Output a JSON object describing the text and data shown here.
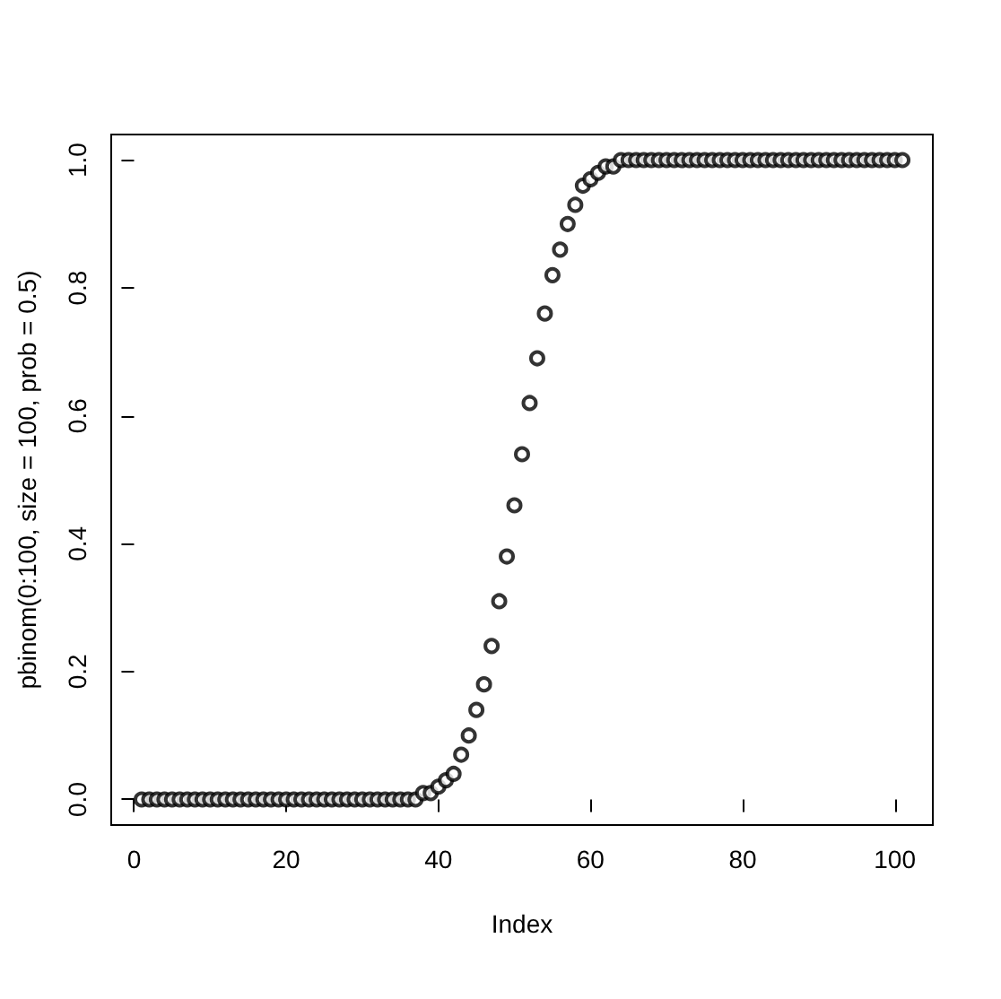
{
  "chart_data": {
    "type": "scatter",
    "xlabel": "Index",
    "ylabel": "pbinom(0:100, size = 100, prob = 0.5)",
    "x": [
      1,
      2,
      3,
      4,
      5,
      6,
      7,
      8,
      9,
      10,
      11,
      12,
      13,
      14,
      15,
      16,
      17,
      18,
      19,
      20,
      21,
      22,
      23,
      24,
      25,
      26,
      27,
      28,
      29,
      30,
      31,
      32,
      33,
      34,
      35,
      36,
      37,
      38,
      39,
      40,
      41,
      42,
      43,
      44,
      45,
      46,
      47,
      48,
      49,
      50,
      51,
      52,
      53,
      54,
      55,
      56,
      57,
      58,
      59,
      60,
      61,
      62,
      63,
      64,
      65,
      66,
      67,
      68,
      69,
      70,
      71,
      72,
      73,
      74,
      75,
      76,
      77,
      78,
      79,
      80,
      81,
      82,
      83,
      84,
      85,
      86,
      87,
      88,
      89,
      90,
      91,
      92,
      93,
      94,
      95,
      96,
      97,
      98,
      99,
      100,
      101
    ],
    "series": [
      {
        "color": "#000000",
        "values": [
          0,
          0,
          0,
          0,
          0,
          0,
          0,
          0,
          0,
          0,
          0,
          0,
          0,
          0,
          0,
          0,
          0,
          0,
          0,
          0,
          0,
          0,
          0,
          0,
          0,
          0,
          0,
          0,
          0,
          0,
          0,
          0,
          0,
          0,
          0,
          0,
          0,
          0.01,
          0.01,
          0.02,
          0.03,
          0.04,
          0.07,
          0.1,
          0.14,
          0.18,
          0.24,
          0.31,
          0.38,
          0.46,
          0.54,
          0.62,
          0.69,
          0.76,
          0.82,
          0.86,
          0.9,
          0.93,
          0.96,
          0.97,
          0.98,
          0.99,
          0.99,
          1,
          1,
          1,
          1,
          1,
          1,
          1,
          1,
          1,
          1,
          1,
          1,
          1,
          1,
          1,
          1,
          1,
          1,
          1,
          1,
          1,
          1,
          1,
          1,
          1,
          1,
          1,
          1,
          1,
          1,
          1,
          1,
          1,
          1,
          1,
          1,
          1,
          1
        ]
      }
    ],
    "xlim": [
      -3,
      105
    ],
    "xticks": [
      0,
      20,
      40,
      60,
      80,
      100
    ],
    "ylim": [
      -0.04,
      1.04
    ],
    "yticks": [
      {
        "value": 0,
        "label": "0.0"
      },
      0.2,
      0.4,
      0.6,
      0.8,
      {
        "value": 1,
        "label": "1.0"
      }
    ],
    "marker": "circle"
  }
}
